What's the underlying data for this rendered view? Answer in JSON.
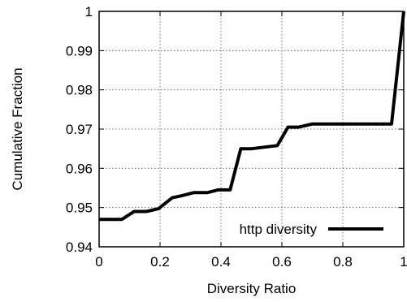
{
  "chart_data": {
    "type": "line",
    "title": "",
    "xlabel": "Diversity Ratio",
    "ylabel": "Cumulative Fraction",
    "xlim": [
      0,
      1
    ],
    "ylim": [
      0.94,
      1
    ],
    "x_ticks": [
      "0",
      "0.2",
      "0.4",
      "0.6",
      "0.8",
      "1"
    ],
    "y_ticks": [
      "0.94",
      "0.95",
      "0.96",
      "0.97",
      "0.98",
      "0.99",
      "1"
    ],
    "grid": true,
    "legend_position": "bottom-right",
    "series": [
      {
        "name": "http diversity",
        "color": "#000000",
        "x": [
          0,
          0.075,
          0.115,
          0.155,
          0.195,
          0.24,
          0.27,
          0.31,
          0.355,
          0.39,
          0.43,
          0.465,
          0.5,
          0.585,
          0.62,
          0.655,
          0.7,
          0.725,
          0.76,
          0.8,
          0.84,
          0.88,
          0.92,
          0.96,
          1.0
        ],
        "y": [
          0.947,
          0.947,
          0.949,
          0.949,
          0.9497,
          0.9525,
          0.953,
          0.9538,
          0.9538,
          0.9545,
          0.9545,
          0.965,
          0.965,
          0.9658,
          0.9705,
          0.9705,
          0.9713,
          0.9713,
          0.9713,
          0.9713,
          0.9713,
          0.9713,
          0.9713,
          0.9713,
          1.0
        ]
      }
    ]
  }
}
